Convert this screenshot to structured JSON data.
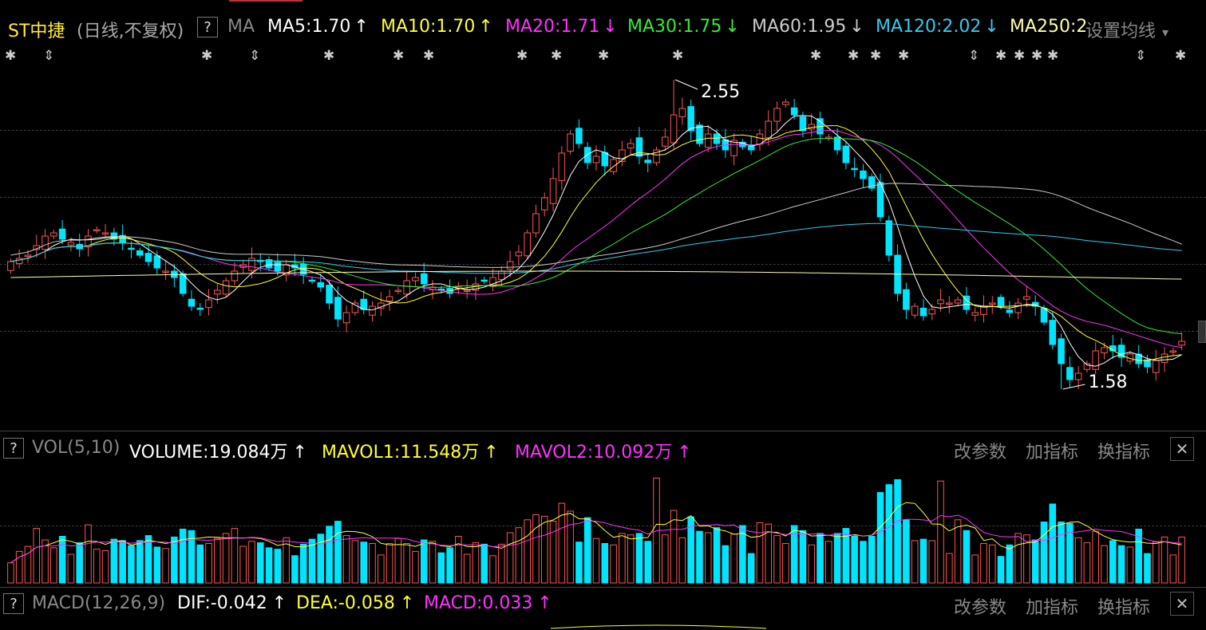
{
  "header": {
    "stock_name": "ST中捷",
    "period": "(日线,不复权)",
    "help": "?",
    "indicator": "MA",
    "ma": [
      {
        "label": "MA5:1.70",
        "arrow": "↑",
        "color": "#ffffff"
      },
      {
        "label": "MA10:1.70",
        "arrow": "↑",
        "color": "#ffff33"
      },
      {
        "label": "MA20:1.71",
        "arrow": "↓",
        "color": "#ff33ff"
      },
      {
        "label": "MA30:1.75",
        "arrow": "↓",
        "color": "#33ee33"
      },
      {
        "label": "MA60:1.95",
        "arrow": "↓",
        "color": "#cccccc"
      },
      {
        "label": "MA120:2.02",
        "arrow": "↓",
        "color": "#33ccee"
      },
      {
        "label": "MA250:2",
        "arrow": "",
        "color": "#ffffaa"
      }
    ],
    "settings": "设置均线",
    "settings_arrow": "▾"
  },
  "price_chart": {
    "high_label": "2.55",
    "low_label": "1.58"
  },
  "vol_panel": {
    "help": "?",
    "name": "VOL(5,10)",
    "volume": "VOLUME:19.084万",
    "volume_arrow": "↑",
    "mavol1": "MAVOL1:11.548万",
    "mavol1_arrow": "↑",
    "mavol2": "MAVOL2:10.092万",
    "mavol2_arrow": "↑",
    "btn_params": "改参数",
    "btn_add": "加指标",
    "btn_switch": "换指标",
    "close": "✕"
  },
  "macd_panel": {
    "help": "?",
    "name": "MACD(12,26,9)",
    "dif": "DIF:-0.042",
    "dif_arrow": "↑",
    "dea": "DEA:-0.058",
    "dea_arrow": "↑",
    "macd": "MACD:0.033",
    "macd_arrow": "↑",
    "btn_params": "改参数",
    "btn_add": "加指标",
    "btn_switch": "换指标",
    "close": "✕"
  },
  "colors": {
    "up": "#ff5555",
    "down": "#00e5ff",
    "ma5": "#ffffff",
    "ma10": "#ffff33",
    "ma20": "#ff33ff",
    "ma30": "#33ee33",
    "ma60": "#cccccc",
    "ma120": "#33ccee",
    "ma250": "#ffffaa"
  },
  "chart_data": {
    "type": "candlestick",
    "price_range": [
      1.5,
      2.6
    ],
    "marked_high": 2.55,
    "marked_low": 1.58,
    "moving_averages_latest": {
      "MA5": 1.7,
      "MA10": 1.7,
      "MA20": 1.71,
      "MA30": 1.75,
      "MA60": 1.95,
      "MA120": 2.02
    },
    "closes": [
      1.98,
      1.99,
      2.0,
      2.03,
      2.06,
      2.07,
      2.05,
      2.04,
      2.02,
      2.06,
      2.08,
      2.07,
      2.05,
      2.04,
      2.02,
      2.0,
      1.98,
      1.96,
      1.95,
      1.93,
      1.88,
      1.84,
      1.83,
      1.86,
      1.89,
      1.92,
      1.95,
      1.97,
      1.99,
      1.98,
      1.96,
      1.95,
      1.97,
      1.96,
      1.94,
      1.92,
      1.9,
      1.85,
      1.8,
      1.82,
      1.85,
      1.83,
      1.84,
      1.85,
      1.87,
      1.89,
      1.92,
      1.93,
      1.91,
      1.9,
      1.89,
      1.88,
      1.9,
      1.89,
      1.91,
      1.92,
      1.93,
      1.95,
      1.98,
      2.01,
      2.07,
      2.13,
      2.18,
      2.24,
      2.32,
      2.38,
      2.35,
      2.29,
      2.31,
      2.28,
      2.3,
      2.33,
      2.35,
      2.31,
      2.29,
      2.33,
      2.37,
      2.44,
      2.46,
      2.39,
      2.35,
      2.38,
      2.35,
      2.33,
      2.36,
      2.34,
      2.33,
      2.38,
      2.42,
      2.46,
      2.48,
      2.44,
      2.39,
      2.41,
      2.38,
      2.37,
      2.33,
      2.29,
      2.27,
      2.24,
      2.21,
      2.12,
      2.0,
      1.88,
      1.83,
      1.84,
      1.81,
      1.83,
      1.86,
      1.85,
      1.86,
      1.83,
      1.82,
      1.84,
      1.85,
      1.84,
      1.82,
      1.85,
      1.87,
      1.84,
      1.79,
      1.72,
      1.66,
      1.61,
      1.63,
      1.66,
      1.7,
      1.71,
      1.7,
      1.68,
      1.69,
      1.66,
      1.65,
      1.67,
      1.69,
      1.7,
      1.73
    ]
  }
}
